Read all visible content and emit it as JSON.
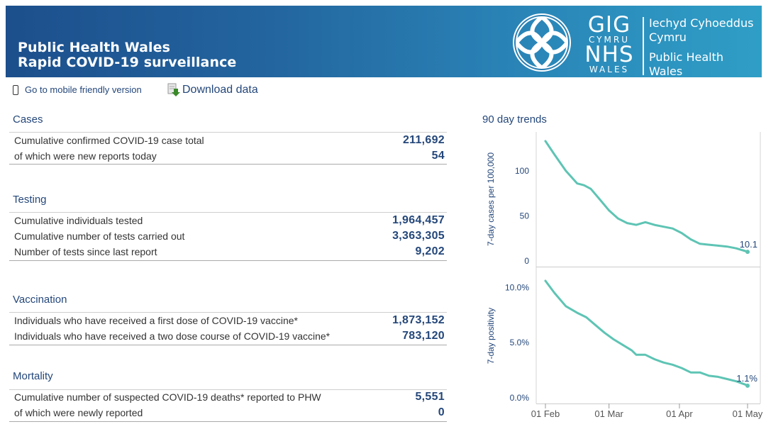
{
  "header": {
    "title_line1": "Public Health Wales",
    "title_line2": "Rapid COVID-19 surveillance",
    "logo": {
      "gig": "GIG",
      "cymru": "CYMRU",
      "nhs": "NHS",
      "wales": "WALES",
      "welsh_line1": "Iechyd Cyhoeddus",
      "welsh_line2": "Cymru",
      "english_line1": "Public Health",
      "english_line2": "Wales"
    }
  },
  "toolbar": {
    "mobile_label": "Go to mobile friendly version",
    "download_label": "Download data",
    "icons": {
      "mobile": "mobile-phone-icon",
      "download": "download-arrow-icon"
    }
  },
  "sections": {
    "cases": {
      "title": "Cases",
      "rows": [
        {
          "label": "Cumulative confirmed COVID-19 case total",
          "value": "211,692"
        },
        {
          "label": "of which were new reports today",
          "value": "54"
        }
      ]
    },
    "testing": {
      "title": "Testing",
      "rows": [
        {
          "label": "Cumulative individuals tested",
          "value": "1,964,457"
        },
        {
          "label": "Cumulative number of tests carried out",
          "value": "3,363,305"
        },
        {
          "label": "Number of tests since last report",
          "value": "9,202"
        }
      ]
    },
    "vaccination": {
      "title": "Vaccination",
      "rows": [
        {
          "label": "Individuals who have received a first dose of COVID-19 vaccine*",
          "value": "1,873,152"
        },
        {
          "label": "Individuals who have received a two dose course of COVID-19 vaccine*",
          "value": "783,120"
        }
      ]
    },
    "mortality": {
      "title": "Mortality",
      "rows": [
        {
          "label": "Cumulative number of suspected COVID-19 deaths* reported to PHW",
          "value": "5,551"
        },
        {
          "label": "of which were newly reported",
          "value": "0"
        }
      ]
    }
  },
  "trends": {
    "title": "90 day trends"
  },
  "colors": {
    "accent": "#24477a",
    "line": "#5ec4b4",
    "header_start": "#1c4f8c",
    "header_end": "#2f9ec6"
  },
  "chart_data": [
    {
      "type": "line",
      "ylabel": "7-day cases per 100,000",
      "ylim": [
        0,
        140
      ],
      "yticks": [
        0,
        50,
        100
      ],
      "ytick_labels": [
        "0",
        "50",
        "100"
      ],
      "end_label": "10.1",
      "x": [
        "2021-02-01",
        "2021-02-05",
        "2021-02-10",
        "2021-02-15",
        "2021-02-18",
        "2021-02-21",
        "2021-02-25",
        "2021-03-01",
        "2021-03-05",
        "2021-03-09",
        "2021-03-13",
        "2021-03-17",
        "2021-03-21",
        "2021-03-25",
        "2021-03-29",
        "2021-04-02",
        "2021-04-06",
        "2021-04-10",
        "2021-04-14",
        "2021-04-18",
        "2021-04-22",
        "2021-04-26",
        "2021-04-30",
        "2021-05-01"
      ],
      "values": [
        133,
        118,
        100,
        86,
        84,
        80,
        68,
        56,
        47,
        42,
        40,
        43,
        40,
        38,
        36,
        31,
        24,
        19,
        18,
        17,
        16,
        14,
        11,
        10.1
      ]
    },
    {
      "type": "line",
      "ylabel": "7-day positivity",
      "ylim": [
        0,
        11.5
      ],
      "yticks": [
        0,
        5,
        10
      ],
      "ytick_labels": [
        "0.0%",
        "5.0%",
        "10.0%"
      ],
      "end_label": "1.1%",
      "xticks": [
        "2021-02-01",
        "2021-03-01",
        "2021-04-01",
        "2021-05-01"
      ],
      "xtick_labels": [
        "01 Feb",
        "01 Mar",
        "01 Apr",
        "01 May"
      ],
      "x": [
        "2021-02-01",
        "2021-02-05",
        "2021-02-10",
        "2021-02-15",
        "2021-02-19",
        "2021-02-23",
        "2021-02-27",
        "2021-03-03",
        "2021-03-07",
        "2021-03-11",
        "2021-03-13",
        "2021-03-17",
        "2021-03-21",
        "2021-03-25",
        "2021-03-29",
        "2021-04-02",
        "2021-04-06",
        "2021-04-10",
        "2021-04-14",
        "2021-04-18",
        "2021-04-22",
        "2021-04-26",
        "2021-04-30",
        "2021-05-01"
      ],
      "values": [
        10.6,
        9.5,
        8.3,
        7.7,
        7.3,
        6.6,
        5.9,
        5.3,
        4.8,
        4.3,
        3.9,
        3.9,
        3.5,
        3.2,
        3.0,
        2.7,
        2.3,
        2.3,
        2.0,
        1.9,
        1.7,
        1.5,
        1.2,
        1.1
      ]
    }
  ]
}
